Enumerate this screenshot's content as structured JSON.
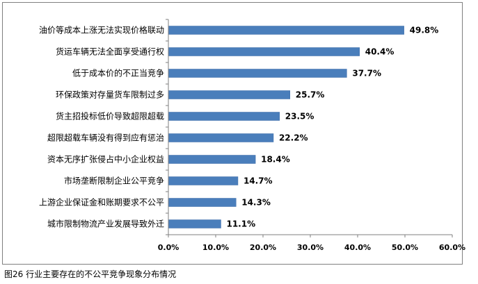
{
  "caption": "图26 行业主要存在的不公平竞争现象分布情况",
  "colors": {
    "bar": "#4a7ebb",
    "bar_stroke": "#3a6aa8",
    "axis": "#7f7f7f"
  },
  "chart_data": {
    "type": "bar",
    "orientation": "horizontal",
    "categories": [
      "油价等成本上涨无法实现价格联动",
      "货运车辆无法全面享受通行权",
      "低于成本价的不正当竞争",
      "环保政策对存量货车限制过多",
      "货主招投标低价导致超限超载",
      "超限超载车辆没有得到应有惩治",
      "资本无序扩张侵占中小企业权益",
      "市场垄断限制企业公平竞争",
      "上游企业保证金和账期要求不公平",
      "城市限制物流产业发展导致外迁"
    ],
    "values": [
      49.8,
      40.4,
      37.7,
      25.7,
      23.5,
      22.2,
      18.4,
      14.7,
      14.3,
      11.1
    ],
    "value_labels": [
      "49.8%",
      "40.4%",
      "37.7%",
      "25.7%",
      "23.5%",
      "22.2%",
      "18.4%",
      "14.7%",
      "14.3%",
      "11.1%"
    ],
    "xlim": [
      0,
      60
    ],
    "x_ticks": [
      0,
      10,
      20,
      30,
      40,
      50,
      60
    ],
    "x_tick_labels": [
      "0.0%",
      "10.0%",
      "20.0%",
      "30.0%",
      "40.0%",
      "50.0%",
      "60.0%"
    ],
    "grid": false,
    "legend": "none"
  }
}
